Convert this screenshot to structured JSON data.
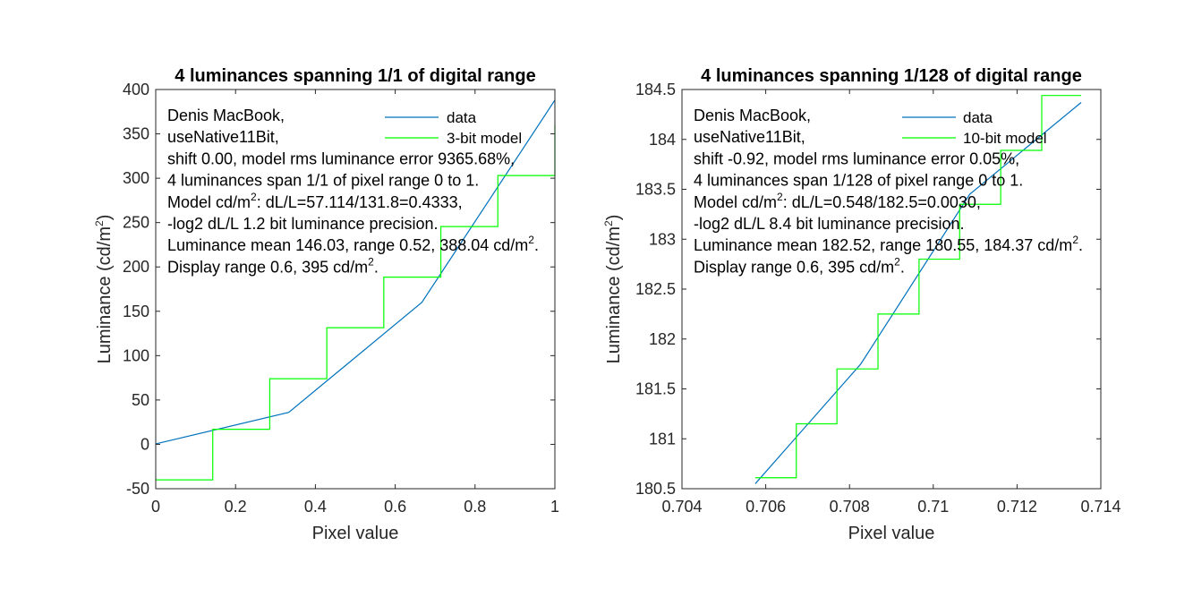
{
  "chart_data": [
    {
      "type": "line",
      "title": "4 luminances spanning 1/1 of digital range",
      "xlabel": "Pixel value",
      "ylabel_text": "Luminance (cd/m",
      "ylabel_sup": "2",
      "ylabel_end": ")",
      "xlim": [
        0,
        1
      ],
      "ylim": [
        -50,
        400
      ],
      "xticks": [
        0,
        0.2,
        0.4,
        0.6,
        0.8,
        1
      ],
      "xtick_labels": [
        "0",
        "0.2",
        "0.4",
        "0.6",
        "0.8",
        "1"
      ],
      "yticks": [
        -50,
        0,
        50,
        100,
        150,
        200,
        250,
        300,
        350,
        400
      ],
      "ytick_labels": [
        "-50",
        "0",
        "50",
        "100",
        "150",
        "200",
        "250",
        "300",
        "350",
        "400"
      ],
      "grid": false,
      "legend_position": "top-right",
      "series": [
        {
          "name": "data",
          "color": "#0072BD",
          "style": "line",
          "x": [
            0,
            0.3333,
            0.6667,
            1
          ],
          "y": [
            0.52,
            36,
            160,
            388.04
          ]
        },
        {
          "name": "3-bit model",
          "color": "#00FF00",
          "style": "step",
          "x": [
            0,
            0.1429,
            0.1429,
            0.2857,
            0.2857,
            0.4286,
            0.4286,
            0.5714,
            0.5714,
            0.7143,
            0.7143,
            0.8571,
            0.8571,
            1,
            1
          ],
          "y": [
            -40,
            -40,
            17,
            17,
            74,
            74,
            131.5,
            131.5,
            188.5,
            188.5,
            245.5,
            245.5,
            303,
            303,
            360
          ]
        }
      ],
      "annotations": [
        "Denis MacBook,",
        "useNative11Bit,",
        "shift 0.00, model rms luminance error 9365.68%,",
        "4 luminances span 1/1 of pixel range 0 to 1.",
        {
          "pre": "Model cd/m",
          "sup": "2",
          "post": ": dL/L=57.114/131.8=0.4333,"
        },
        "-log2 dL/L 1.2 bit luminance precision.",
        {
          "pre": "Luminance mean 146.03, range 0.52, 388.04 cd/m",
          "sup": "2",
          "post": "."
        },
        {
          "pre": "Display range 0.6, 395 cd/m",
          "sup": "2",
          "post": "."
        }
      ]
    },
    {
      "type": "line",
      "title": "4 luminances spanning 1/128 of digital range",
      "xlabel": "Pixel value",
      "ylabel_text": "Luminance (cd/m",
      "ylabel_sup": "2",
      "ylabel_end": ")",
      "xlim": [
        0.704,
        0.714
      ],
      "ylim": [
        180.5,
        184.5
      ],
      "xticks": [
        0.704,
        0.706,
        0.708,
        0.71,
        0.712,
        0.714
      ],
      "xtick_labels": [
        "0.704",
        "0.706",
        "0.708",
        "0.71",
        "0.712",
        "0.714"
      ],
      "yticks": [
        180.5,
        181,
        181.5,
        182,
        182.5,
        183,
        183.5,
        184,
        184.5
      ],
      "ytick_labels": [
        "180.5",
        "181",
        "181.5",
        "182",
        "182.5",
        "183",
        "183.5",
        "184",
        "184.5"
      ],
      "grid": false,
      "legend_position": "top-right",
      "series": [
        {
          "name": "data",
          "color": "#0072BD",
          "style": "line",
          "x": [
            0.70575,
            0.70827,
            0.71087,
            0.71353
          ],
          "y": [
            180.55,
            181.75,
            183.45,
            184.37
          ]
        },
        {
          "name": "10-bit model",
          "color": "#00FF00",
          "style": "step",
          "x": [
            0.70575,
            0.70673,
            0.70673,
            0.7077,
            0.7077,
            0.70868,
            0.70868,
            0.70966,
            0.70966,
            0.71063,
            0.71063,
            0.71161,
            0.71161,
            0.71259,
            0.71259,
            0.71353
          ],
          "y": [
            180.61,
            180.61,
            181.15,
            181.15,
            181.7,
            181.7,
            182.25,
            182.25,
            182.8,
            182.8,
            183.35,
            183.35,
            183.89,
            183.89,
            184.44,
            184.44
          ]
        }
      ],
      "annotations": [
        "Denis MacBook,",
        "useNative11Bit,",
        "shift -0.92, model rms luminance error 0.05%,",
        "4 luminances span 1/128 of pixel range 0 to 1.",
        {
          "pre": "Model cd/m",
          "sup": "2",
          "post": ": dL/L=0.548/182.5=0.0030,"
        },
        "-log2 dL/L 8.4 bit luminance precision.",
        {
          "pre": "Luminance mean 182.52, range 180.55, 184.37 cd/m",
          "sup": "2",
          "post": "."
        },
        {
          "pre": "Display range 0.6, 395 cd/m",
          "sup": "2",
          "post": "."
        }
      ]
    }
  ]
}
